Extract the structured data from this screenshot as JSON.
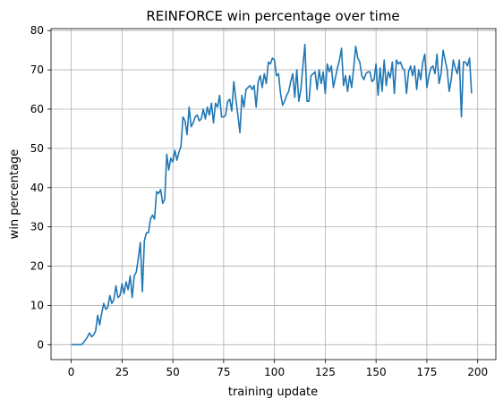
{
  "chart_data": {
    "type": "line",
    "title": "REINFORCE win percentage over time",
    "xlabel": "training update",
    "ylabel": "win percentage",
    "xlim": [
      -9.95,
      208.95
    ],
    "ylim": [
      -3.8,
      80.5
    ],
    "xticks": [
      0,
      25,
      50,
      75,
      100,
      125,
      150,
      175,
      200
    ],
    "yticks": [
      0,
      10,
      20,
      30,
      40,
      50,
      60,
      70,
      80
    ],
    "grid": true,
    "line_color": "#1f77b4",
    "series": [
      {
        "values": [
          0,
          0,
          0,
          0,
          0,
          0,
          0.5,
          1.2,
          2,
          3,
          2,
          2.5,
          3.5,
          7.5,
          5,
          8,
          10.5,
          9,
          9.5,
          12.5,
          10.5,
          11.5,
          15,
          12,
          12.5,
          15.5,
          13,
          16,
          14,
          17.5,
          12,
          17.5,
          18.5,
          22,
          26,
          13.5,
          26.5,
          28.5,
          28.5,
          32,
          33,
          32,
          39,
          38.5,
          39.5,
          36,
          37,
          48.5,
          44.5,
          47.5,
          46.5,
          49.5,
          47,
          49,
          50.5,
          58,
          57,
          53.5,
          60.5,
          55.5,
          56.5,
          58,
          58.5,
          57,
          57.5,
          60,
          57.5,
          60.5,
          58.5,
          61.5,
          56.5,
          61.5,
          60.5,
          63.5,
          58,
          58,
          58.5,
          62,
          62.5,
          59.5,
          67,
          62.5,
          58.5,
          54,
          63.5,
          60.5,
          65,
          65.5,
          66,
          65,
          66,
          60.5,
          67,
          68.5,
          65.5,
          69,
          66.5,
          72,
          71.5,
          73,
          72.5,
          68.5,
          69,
          64,
          61,
          62,
          63.5,
          64.5,
          67,
          69,
          63,
          70,
          62,
          65,
          71,
          76.5,
          62,
          62,
          68.5,
          69,
          69.5,
          65,
          70,
          66.5,
          69.5,
          64,
          71.5,
          69.5,
          71,
          65.5,
          68,
          70.5,
          72.5,
          75.5,
          66,
          68.5,
          64.5,
          68.5,
          65.5,
          70.5,
          76,
          73,
          72,
          68.5,
          67.5,
          69,
          69.5,
          69.5,
          67,
          67.5,
          71.5,
          63.5,
          70.5,
          64.5,
          72.5,
          66,
          69.5,
          68,
          72,
          64,
          72.5,
          71.5,
          72,
          70.5,
          70,
          64,
          69.5,
          71,
          68.5,
          71,
          65,
          70,
          67.5,
          72,
          74,
          65.5,
          68.5,
          70.5,
          71,
          69,
          74,
          66.5,
          69,
          75,
          72.5,
          70,
          64.5,
          67.5,
          72.5,
          70.5,
          69,
          72.5,
          58,
          72,
          72,
          71,
          73,
          64
        ]
      }
    ]
  }
}
